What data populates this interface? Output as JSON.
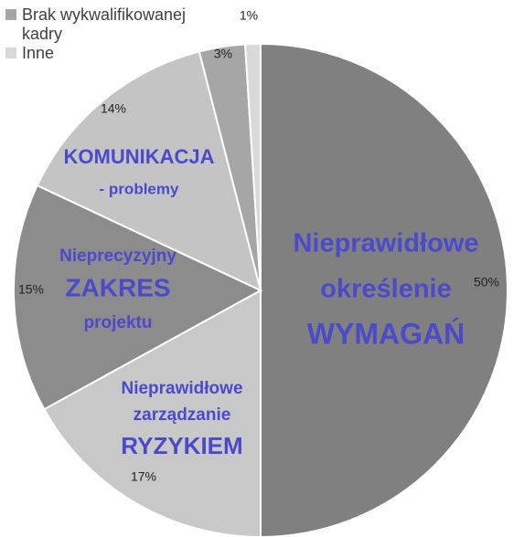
{
  "chart_data": {
    "type": "pie",
    "legend": [
      {
        "label": "Brak wykwalifikowanej\nkadry",
        "color": "#a6a6a6"
      },
      {
        "label": "Inne",
        "color": "#d9d9d9"
      }
    ],
    "slices": [
      {
        "value": 50,
        "pct_label": "50%",
        "color": "#808080",
        "lines": [
          "Nieprawidłowe",
          "określenie",
          "WYMAGAŃ"
        ]
      },
      {
        "value": 17,
        "pct_label": "17%",
        "color": "#c8c8c8",
        "lines": [
          "Nieprawidłowe",
          "zarządzanie",
          "RYZYKIEM"
        ]
      },
      {
        "value": 15,
        "pct_label": "15%",
        "color": "#8c8c8c",
        "lines": [
          "Nieprecyzyjny",
          "ZAKRES",
          "projektu"
        ]
      },
      {
        "value": 14,
        "pct_label": "14%",
        "color": "#c4c4c4",
        "lines": [
          "KOMUNIKACJA",
          "- problemy"
        ]
      },
      {
        "value": 3,
        "pct_label": "3%",
        "color": "#a6a6a6",
        "lines": []
      },
      {
        "value": 1,
        "pct_label": "1%",
        "color": "#d9d9d9",
        "lines": []
      }
    ]
  }
}
